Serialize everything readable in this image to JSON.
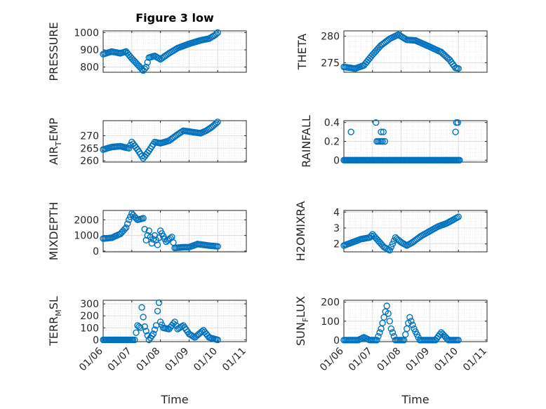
{
  "figure": {
    "title": "Figure 3 low",
    "marker_color": "#0072BD",
    "axis_color": "#262626",
    "grid_color": "#dcdcdc",
    "x_tick_labels": [
      "01/06",
      "01/07",
      "01/08",
      "01/09",
      "01/10",
      "01/11"
    ],
    "x_label": "Time"
  },
  "chart_data": [
    {
      "id": "pressure",
      "type": "scatter",
      "title": "Figure 3 low",
      "ylabel": "PRESSURE",
      "xlabel": "",
      "xlim": [
        0,
        5
      ],
      "ylim": [
        770,
        1010
      ],
      "yticks": [
        800,
        900,
        1000
      ],
      "yticklabels": [
        "800",
        "900",
        "1000"
      ],
      "grid": true,
      "minor_grid": true,
      "keypoints": [
        [
          0,
          875
        ],
        [
          0.3,
          890
        ],
        [
          0.6,
          880
        ],
        [
          0.8,
          890
        ],
        [
          1.0,
          850
        ],
        [
          1.2,
          815
        ],
        [
          1.4,
          780
        ],
        [
          1.5,
          800
        ],
        [
          1.6,
          855
        ],
        [
          1.8,
          865
        ],
        [
          2.0,
          845
        ],
        [
          2.3,
          880
        ],
        [
          2.6,
          910
        ],
        [
          3.0,
          935
        ],
        [
          3.4,
          955
        ],
        [
          3.7,
          965
        ],
        [
          3.9,
          985
        ],
        [
          4.0,
          1000
        ]
      ]
    },
    {
      "id": "theta",
      "type": "scatter",
      "ylabel": "THETA",
      "xlabel": "",
      "xlim": [
        0,
        5
      ],
      "ylim": [
        273.2,
        281
      ],
      "yticks": [
        275,
        280
      ],
      "yticklabels": [
        "275",
        "280"
      ],
      "grid": true,
      "minor_grid": true,
      "keypoints": [
        [
          0,
          274.2
        ],
        [
          0.4,
          273.9
        ],
        [
          0.7,
          274.5
        ],
        [
          1.0,
          276.5
        ],
        [
          1.3,
          278.3
        ],
        [
          1.6,
          279.5
        ],
        [
          1.9,
          280.3
        ],
        [
          2.2,
          279.3
        ],
        [
          2.5,
          279.2
        ],
        [
          3.0,
          278.0
        ],
        [
          3.4,
          277.0
        ],
        [
          3.7,
          275.5
        ],
        [
          3.9,
          274.0
        ],
        [
          4.0,
          273.9
        ]
      ]
    },
    {
      "id": "air_temp",
      "type": "scatter",
      "ylabel": "AIR_TEMP",
      "xlabel": "",
      "xlim": [
        0,
        5
      ],
      "ylim": [
        259.5,
        276
      ],
      "yticks": [
        260,
        265,
        270
      ],
      "yticklabels": [
        "260",
        "265",
        "270"
      ],
      "grid": true,
      "minor_grid": true,
      "keypoints": [
        [
          0,
          264.5
        ],
        [
          0.3,
          265.5
        ],
        [
          0.6,
          265.8
        ],
        [
          0.9,
          265
        ],
        [
          1.0,
          267.5
        ],
        [
          1.2,
          264.5
        ],
        [
          1.4,
          261
        ],
        [
          1.6,
          264
        ],
        [
          1.8,
          267.5
        ],
        [
          2.0,
          267
        ],
        [
          2.3,
          268
        ],
        [
          2.6,
          270.5
        ],
        [
          2.8,
          272
        ],
        [
          3.1,
          271.5
        ],
        [
          3.4,
          271
        ],
        [
          3.6,
          272
        ],
        [
          3.8,
          273.5
        ],
        [
          4.0,
          275.5
        ]
      ]
    },
    {
      "id": "rainfall",
      "type": "scatter",
      "ylabel": "RAINFALL",
      "xlabel": "",
      "xlim": [
        0,
        5
      ],
      "ylim": [
        -0.02,
        0.42
      ],
      "yticks": [
        0,
        0.2,
        0.4
      ],
      "yticklabels": [
        "0",
        "0.2",
        "0.4"
      ],
      "grid": true,
      "minor_grid": true,
      "baseline": [
        0,
        4.05,
        0
      ],
      "extra_points": [
        [
          0.25,
          0.3
        ],
        [
          1.12,
          0.4
        ],
        [
          1.15,
          0.2
        ],
        [
          1.2,
          0.2
        ],
        [
          1.25,
          0.2
        ],
        [
          1.3,
          0.3
        ],
        [
          1.3,
          0.2
        ],
        [
          1.35,
          0.2
        ],
        [
          1.38,
          0.3
        ],
        [
          1.43,
          0.2
        ],
        [
          3.9,
          0.3
        ],
        [
          3.93,
          0.4
        ],
        [
          3.98,
          0.4
        ]
      ]
    },
    {
      "id": "mixdepth",
      "type": "scatter",
      "ylabel": "MIXDEPTH",
      "xlabel": "",
      "xlim": [
        0,
        5
      ],
      "ylim": [
        -50,
        2600
      ],
      "yticks": [
        0,
        1000,
        2000
      ],
      "yticklabels": [
        "0",
        "1000",
        "2000"
      ],
      "grid": true,
      "minor_grid": true,
      "keypoints": [
        [
          0,
          800
        ],
        [
          0.3,
          850
        ],
        [
          0.6,
          1100
        ],
        [
          0.8,
          1500
        ],
        [
          0.9,
          2000
        ],
        [
          1.0,
          2400
        ],
        [
          1.2,
          2000
        ],
        [
          1.4,
          2100
        ],
        [
          1.5,
          700
        ],
        [
          1.6,
          1300
        ],
        [
          1.7,
          500
        ],
        [
          1.8,
          1000
        ],
        [
          1.9,
          400
        ],
        [
          2.0,
          1300
        ],
        [
          2.2,
          600
        ],
        [
          2.4,
          900
        ],
        [
          2.5,
          200
        ],
        [
          2.8,
          250
        ],
        [
          3.0,
          250
        ],
        [
          3.3,
          450
        ],
        [
          3.7,
          350
        ],
        [
          4.0,
          300
        ]
      ]
    },
    {
      "id": "h2omixra",
      "type": "scatter",
      "ylabel": "H2OMIXRA",
      "xlabel": "",
      "xlim": [
        0,
        5
      ],
      "ylim": [
        1.5,
        4.1
      ],
      "yticks": [
        2,
        3,
        4
      ],
      "yticklabels": [
        "2",
        "3",
        "4"
      ],
      "grid": true,
      "minor_grid": true,
      "keypoints": [
        [
          0,
          1.9
        ],
        [
          0.3,
          2.1
        ],
        [
          0.6,
          2.3
        ],
        [
          0.9,
          2.4
        ],
        [
          1.0,
          2.6
        ],
        [
          1.2,
          2.2
        ],
        [
          1.4,
          1.8
        ],
        [
          1.6,
          1.6
        ],
        [
          1.8,
          2.4
        ],
        [
          2.0,
          2.1
        ],
        [
          2.2,
          1.9
        ],
        [
          2.4,
          2.1
        ],
        [
          2.7,
          2.5
        ],
        [
          3.0,
          2.8
        ],
        [
          3.3,
          3.1
        ],
        [
          3.6,
          3.3
        ],
        [
          3.9,
          3.6
        ],
        [
          4.0,
          3.7
        ]
      ]
    },
    {
      "id": "terr_msl",
      "type": "scatter",
      "ylabel": "TERR_MSL",
      "xlabel": "Time",
      "xlim": [
        0,
        5
      ],
      "ylim": [
        -15,
        330
      ],
      "yticks": [
        0,
        100,
        200,
        300
      ],
      "yticklabels": [
        "0",
        "100",
        "200",
        "300"
      ],
      "grid": true,
      "minor_grid": true,
      "baseline": [
        0,
        1.05,
        0
      ],
      "keypoints": [
        [
          1.1,
          0
        ],
        [
          1.2,
          120
        ],
        [
          1.3,
          100
        ],
        [
          1.35,
          270
        ],
        [
          1.45,
          110
        ],
        [
          1.6,
          0
        ],
        [
          1.75,
          50
        ],
        [
          1.85,
          120
        ],
        [
          1.9,
          240
        ],
        [
          1.95,
          310
        ],
        [
          2.0,
          150
        ],
        [
          2.1,
          100
        ],
        [
          2.3,
          90
        ],
        [
          2.5,
          150
        ],
        [
          2.6,
          90
        ],
        [
          2.8,
          120
        ],
        [
          3.0,
          50
        ],
        [
          3.2,
          20
        ],
        [
          3.5,
          80
        ],
        [
          3.7,
          20
        ],
        [
          4.0,
          0
        ]
      ]
    },
    {
      "id": "sun_flux",
      "type": "scatter",
      "ylabel": "SUN_FLUX",
      "xlabel": "Time",
      "xlim": [
        0,
        5
      ],
      "ylim": [
        -8,
        210
      ],
      "yticks": [
        0,
        100,
        200
      ],
      "yticklabels": [
        "0",
        "100",
        "200"
      ],
      "grid": true,
      "minor_grid": true,
      "keypoints": [
        [
          0,
          0
        ],
        [
          0.5,
          0
        ],
        [
          0.7,
          15
        ],
        [
          0.9,
          0
        ],
        [
          1.15,
          0
        ],
        [
          1.3,
          60
        ],
        [
          1.5,
          180
        ],
        [
          1.65,
          60
        ],
        [
          1.8,
          0
        ],
        [
          2.1,
          0
        ],
        [
          2.3,
          120
        ],
        [
          2.45,
          60
        ],
        [
          2.65,
          0
        ],
        [
          3.2,
          0
        ],
        [
          3.4,
          40
        ],
        [
          3.65,
          0
        ],
        [
          4.0,
          0
        ]
      ]
    }
  ]
}
